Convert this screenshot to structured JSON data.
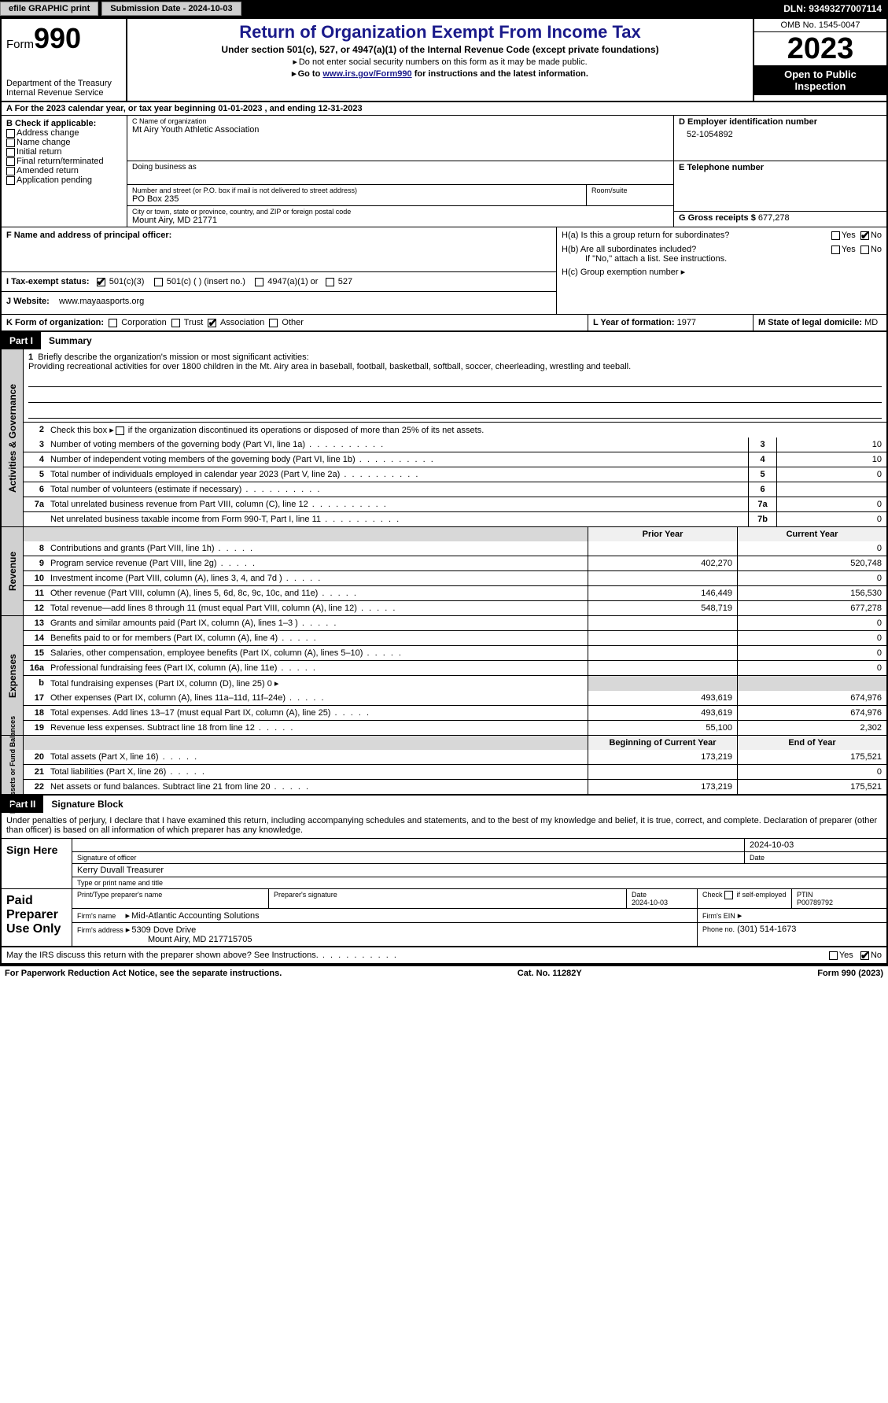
{
  "topbar": {
    "efile": "efile GRAPHIC print",
    "submission_label": "Submission Date - 2024-10-03",
    "dln_label": "DLN: 93493277007114"
  },
  "header": {
    "form_word": "Form",
    "form_num": "990",
    "dept": "Department of the Treasury",
    "irs": "Internal Revenue Service",
    "title": "Return of Organization Exempt From Income Tax",
    "sub1": "Under section 501(c), 527, or 4947(a)(1) of the Internal Revenue Code (except private foundations)",
    "sub2": "Do not enter social security numbers on this form as it may be made public.",
    "sub3_pre": "Go to ",
    "sub3_link": "www.irs.gov/Form990",
    "sub3_post": " for instructions and the latest information.",
    "omb": "OMB No. 1545-0047",
    "year": "2023",
    "open": "Open to Public Inspection"
  },
  "rowA": "A  For the 2023 calendar year, or tax year beginning 01-01-2023    , and ending 12-31-2023",
  "B": {
    "hdr": "B Check if applicable:",
    "addr": "Address change",
    "name": "Name change",
    "init": "Initial return",
    "final": "Final return/terminated",
    "amend": "Amended return",
    "app": "Application pending"
  },
  "C": {
    "name_lbl": "C Name of organization",
    "name": "Mt Airy Youth Athletic Association",
    "dba_lbl": "Doing business as",
    "street_lbl": "Number and street (or P.O. box if mail is not delivered to street address)",
    "street": "PO Box 235",
    "room_lbl": "Room/suite",
    "city_lbl": "City or town, state or province, country, and ZIP or foreign postal code",
    "city": "Mount Airy, MD  21771"
  },
  "D": {
    "lbl": "D Employer identification number",
    "val": "52-1054892"
  },
  "E": {
    "lbl": "E Telephone number",
    "val": ""
  },
  "G": {
    "lbl": "G Gross receipts $",
    "val": "677,278"
  },
  "F": {
    "lbl": "F  Name and address of principal officer:"
  },
  "H": {
    "a": "H(a)  Is this a group return for subordinates?",
    "b": "H(b)  Are all subordinates included?",
    "b2": "If \"No,\" attach a list. See instructions.",
    "c": "H(c)  Group exemption number",
    "yes": "Yes",
    "no": "No"
  },
  "I": {
    "lbl": "I    Tax-exempt status:",
    "c3": "501(c)(3)",
    "c": "501(c) (  ) (insert no.)",
    "a1": "4947(a)(1) or",
    "s527": "527"
  },
  "J": {
    "lbl": "J    Website:",
    "val": "www.mayaasports.org"
  },
  "K": {
    "lbl": "K Form of organization:",
    "corp": "Corporation",
    "trust": "Trust",
    "assoc": "Association",
    "other": "Other"
  },
  "L": {
    "lbl": "L Year of formation:",
    "val": "1977"
  },
  "M": {
    "lbl": "M State of legal domicile:",
    "val": "MD"
  },
  "part1": {
    "label": "Part I",
    "title": "Summary",
    "side_ag": "Activities & Governance",
    "side_rev": "Revenue",
    "side_exp": "Expenses",
    "side_net": "Net Assets or Fund Balances",
    "l1a": "Briefly describe the organization's mission or most significant activities:",
    "l1b": "Providing recreational activities for over 1800 children in the Mt. Airy area in baseball, football, basketball, softball, soccer, cheerleading, wrestling and teeball.",
    "l2": "Check this box          if the organization discontinued its operations or disposed of more than 25% of its net assets.",
    "rows_single": [
      {
        "n": "3",
        "t": "Number of voting members of the governing body (Part VI, line 1a)",
        "box": "3",
        "v": "10"
      },
      {
        "n": "4",
        "t": "Number of independent voting members of the governing body (Part VI, line 1b)",
        "box": "4",
        "v": "10"
      },
      {
        "n": "5",
        "t": "Total number of individuals employed in calendar year 2023 (Part V, line 2a)",
        "box": "5",
        "v": "0"
      },
      {
        "n": "6",
        "t": "Total number of volunteers (estimate if necessary)",
        "box": "6",
        "v": ""
      },
      {
        "n": "7a",
        "t": "Total unrelated business revenue from Part VIII, column (C), line 12",
        "box": "7a",
        "v": "0"
      },
      {
        "n": "",
        "t": "Net unrelated business taxable income from Form 990-T, Part I, line 11",
        "box": "7b",
        "v": "0"
      }
    ],
    "col_py": "Prior Year",
    "col_cy": "Current Year",
    "rows_rev": [
      {
        "n": "8",
        "t": "Contributions and grants (Part VIII, line 1h)",
        "py": "",
        "cy": "0"
      },
      {
        "n": "9",
        "t": "Program service revenue (Part VIII, line 2g)",
        "py": "402,270",
        "cy": "520,748"
      },
      {
        "n": "10",
        "t": "Investment income (Part VIII, column (A), lines 3, 4, and 7d )",
        "py": "",
        "cy": "0"
      },
      {
        "n": "11",
        "t": "Other revenue (Part VIII, column (A), lines 5, 6d, 8c, 9c, 10c, and 11e)",
        "py": "146,449",
        "cy": "156,530"
      },
      {
        "n": "12",
        "t": "Total revenue—add lines 8 through 11 (must equal Part VIII, column (A), line 12)",
        "py": "548,719",
        "cy": "677,278"
      }
    ],
    "rows_exp": [
      {
        "n": "13",
        "t": "Grants and similar amounts paid (Part IX, column (A), lines 1–3 )",
        "py": "",
        "cy": "0"
      },
      {
        "n": "14",
        "t": "Benefits paid to or for members (Part IX, column (A), line 4)",
        "py": "",
        "cy": "0"
      },
      {
        "n": "15",
        "t": "Salaries, other compensation, employee benefits (Part IX, column (A), lines 5–10)",
        "py": "",
        "cy": "0"
      },
      {
        "n": "16a",
        "t": "Professional fundraising fees (Part IX, column (A), line 11e)",
        "py": "",
        "cy": "0"
      }
    ],
    "l16b": "Total fundraising expenses (Part IX, column (D), line 25) 0",
    "rows_exp2": [
      {
        "n": "17",
        "t": "Other expenses (Part IX, column (A), lines 11a–11d, 11f–24e)",
        "py": "493,619",
        "cy": "674,976"
      },
      {
        "n": "18",
        "t": "Total expenses. Add lines 13–17 (must equal Part IX, column (A), line 25)",
        "py": "493,619",
        "cy": "674,976"
      },
      {
        "n": "19",
        "t": "Revenue less expenses. Subtract line 18 from line 12",
        "py": "55,100",
        "cy": "2,302"
      }
    ],
    "col_boy": "Beginning of Current Year",
    "col_eoy": "End of Year",
    "rows_net": [
      {
        "n": "20",
        "t": "Total assets (Part X, line 16)",
        "py": "173,219",
        "cy": "175,521"
      },
      {
        "n": "21",
        "t": "Total liabilities (Part X, line 26)",
        "py": "",
        "cy": "0"
      },
      {
        "n": "22",
        "t": "Net assets or fund balances. Subtract line 21 from line 20",
        "py": "173,219",
        "cy": "175,521"
      }
    ]
  },
  "part2": {
    "label": "Part II",
    "title": "Signature Block",
    "decl": "Under penalties of perjury, I declare that I have examined this return, including accompanying schedules and statements, and to the best of my knowledge and belief, it is true, correct, and complete. Declaration of preparer (other than officer) is based on all information of which preparer has any knowledge.",
    "sign_here": "Sign Here",
    "sig_off": "Signature of officer",
    "sig_date": "2024-10-03",
    "date_lbl": "Date",
    "officer": "Kerry Duvall  Treasurer",
    "type_lbl": "Type or print name and title",
    "paid": "Paid Preparer Use Only",
    "prep_name_lbl": "Print/Type preparer's name",
    "prep_sig_lbl": "Preparer's signature",
    "prep_date_lbl": "Date",
    "prep_date": "2024-10-03",
    "check_se": "Check          if self-employed",
    "ptin_lbl": "PTIN",
    "ptin": "P00789792",
    "firm_name_lbl": "Firm's name",
    "firm_name": "Mid-Atlantic Accounting Solutions",
    "firm_ein_lbl": "Firm's EIN",
    "firm_addr_lbl": "Firm's address",
    "firm_addr1": "5309 Dove Drive",
    "firm_addr2": "Mount Airy, MD  217715705",
    "phone_lbl": "Phone no.",
    "phone": "(301) 514-1673",
    "discuss": "May the IRS discuss this return with the preparer shown above? See Instructions.",
    "yes": "Yes",
    "no": "No"
  },
  "footer": {
    "left": "For Paperwork Reduction Act Notice, see the separate instructions.",
    "mid": "Cat. No. 11282Y",
    "right": "Form 990 (2023)"
  }
}
